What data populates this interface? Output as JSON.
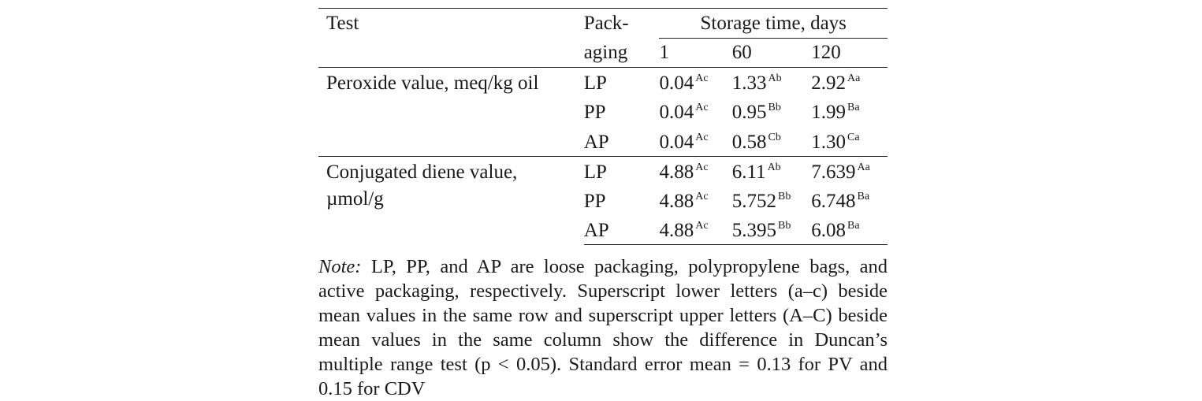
{
  "table": {
    "col_test": "Test",
    "col_pack_1": "Pack-",
    "col_pack_2": "aging",
    "storage_header": "Storage time, days",
    "days": [
      "1",
      "60",
      "120"
    ],
    "groups": [
      {
        "test_line1": "Peroxide value, meq/kg oil",
        "test_line2": "",
        "rows": [
          {
            "pack": "LP",
            "v1": "0.04",
            "s1": "Ac",
            "v60": "1.33",
            "s60": "Ab",
            "v120": "2.92",
            "s120": "Aa"
          },
          {
            "pack": "PP",
            "v1": "0.04",
            "s1": "Ac",
            "v60": "0.95",
            "s60": "Bb",
            "v120": "1.99",
            "s120": "Ba"
          },
          {
            "pack": "AP",
            "v1": "0.04",
            "s1": "Ac",
            "v60": "0.58",
            "s60": "Cb",
            "v120": "1.30",
            "s120": "Ca"
          }
        ]
      },
      {
        "test_line1": "Conjugated diene value,",
        "test_line2": "µmol/g",
        "rows": [
          {
            "pack": "LP",
            "v1": "4.88",
            "s1": "Ac",
            "v60": "6.11",
            "s60": "Ab",
            "v120": "7.639",
            "s120": "Aa"
          },
          {
            "pack": "PP",
            "v1": "4.88",
            "s1": "Ac",
            "v60": "5.752",
            "s60": "Bb",
            "v120": "6.748",
            "s120": "Ba"
          },
          {
            "pack": "AP",
            "v1": "4.88",
            "s1": "Ac",
            "v60": "5.395",
            "s60": "Bb",
            "v120": "6.08",
            "s120": "Ba"
          }
        ]
      }
    ]
  },
  "note": {
    "label": "Note:",
    "text": "LP, PP, and AP are loose packaging, polypropylene bags, and active packaging, respectively. Superscript lower letters (a–c) beside mean values in the same row and superscript upper letters (A–C) beside mean values in the same column show the difference in Duncan’s multiple range test (p < 0.05). Standard error mean = 0.13 for PV and 0.15 for CDV"
  }
}
